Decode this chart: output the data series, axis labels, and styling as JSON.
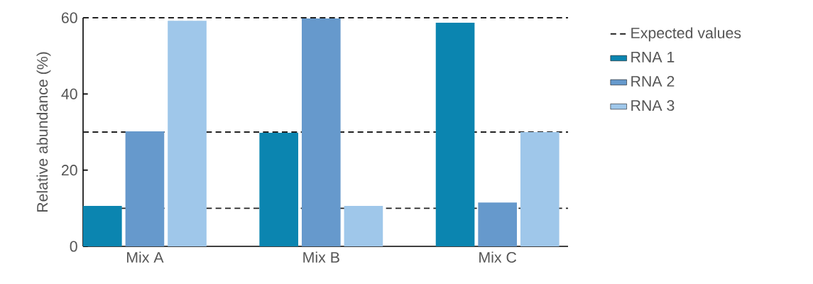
{
  "chart_data": {
    "type": "bar",
    "ylabel": "Relative abundance (%)",
    "categories": [
      "Mix A",
      "Mix B",
      "Mix C"
    ],
    "series": [
      {
        "name": "RNA 1",
        "color": "#0b85b0",
        "values": [
          10.6,
          29.8,
          58.7
        ]
      },
      {
        "name": "RNA 2",
        "color": "#6699cc",
        "values": [
          30.2,
          59.8,
          11.5
        ]
      },
      {
        "name": "RNA 3",
        "color": "#9fc7ea",
        "values": [
          59.2,
          10.6,
          30.0
        ]
      }
    ],
    "ylim": [
      0,
      60
    ],
    "yticks": [
      0,
      20,
      40,
      60
    ],
    "ref_lines": [
      {
        "axis": "y",
        "value": 10,
        "label": "Expected values",
        "color": "#222222",
        "line_style": "dashed"
      },
      {
        "axis": "y",
        "value": 30,
        "color": "#222222",
        "line_style": "dashed"
      },
      {
        "axis": "y",
        "value": 60,
        "color": "#222222",
        "line_style": "dashed"
      }
    ],
    "grid": false,
    "legend": "right"
  }
}
